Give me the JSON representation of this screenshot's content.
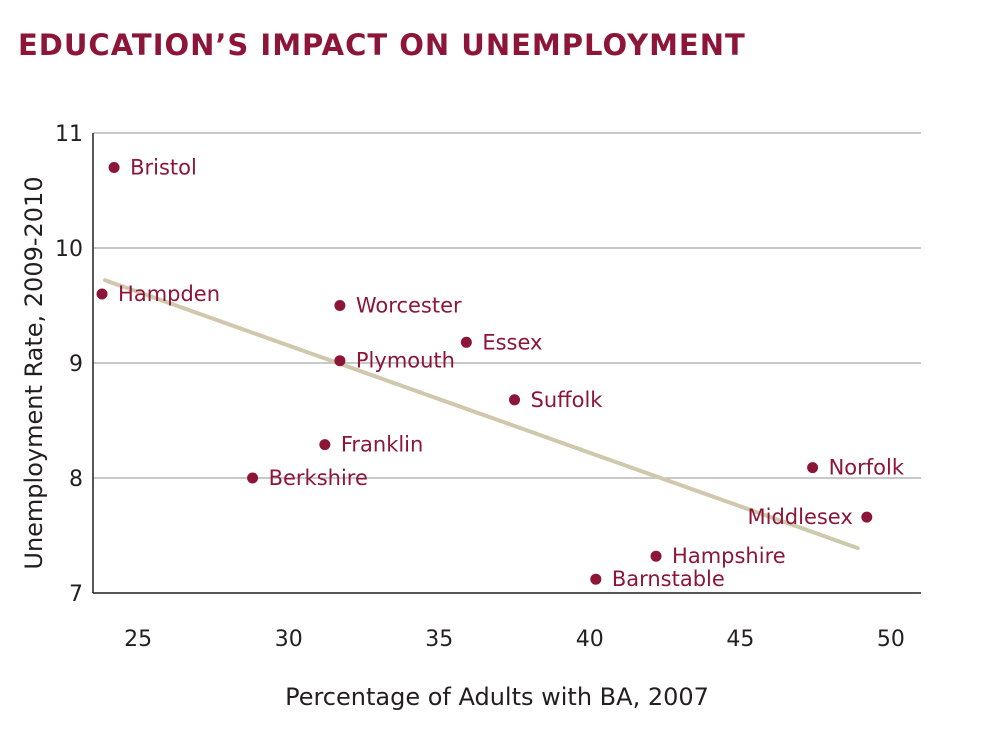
{
  "colors": {
    "title": "#8c1538",
    "point": "#8c1538",
    "label": "#8c1538",
    "trendline": "#cfc8ad",
    "grid": "#b7b7b7",
    "axis": "#231f20",
    "text": "#231f20"
  },
  "chart_data": {
    "type": "scatter",
    "title": "EDUCATION’S IMPACT ON UNEMPLOYMENT",
    "xlabel": "Percentage of Adults with BA, 2007",
    "ylabel": "Unemployment Rate, 2009-2010",
    "xlim": [
      23.5,
      51
    ],
    "ylim": [
      7,
      11
    ],
    "xticks": [
      25,
      30,
      35,
      40,
      45,
      50
    ],
    "yticks": [
      7,
      8,
      9,
      10,
      11
    ],
    "grid": "horizontal",
    "points": [
      {
        "label": "Bristol",
        "x": 24.2,
        "y": 10.7,
        "label_pos": "right"
      },
      {
        "label": "Hampden",
        "x": 23.8,
        "y": 9.6,
        "label_pos": "right"
      },
      {
        "label": "Worcester",
        "x": 31.7,
        "y": 9.5,
        "label_pos": "right"
      },
      {
        "label": "Essex",
        "x": 35.9,
        "y": 9.18,
        "label_pos": "right"
      },
      {
        "label": "Plymouth",
        "x": 31.7,
        "y": 9.02,
        "label_pos": "right"
      },
      {
        "label": "Suffolk",
        "x": 37.5,
        "y": 8.68,
        "label_pos": "right"
      },
      {
        "label": "Franklin",
        "x": 31.2,
        "y": 8.29,
        "label_pos": "right"
      },
      {
        "label": "Berkshire",
        "x": 28.8,
        "y": 8.0,
        "label_pos": "right"
      },
      {
        "label": "Norfolk",
        "x": 47.4,
        "y": 8.09,
        "label_pos": "right"
      },
      {
        "label": "Middlesex",
        "x": 49.2,
        "y": 7.66,
        "label_pos": "left"
      },
      {
        "label": "Hampshire",
        "x": 42.2,
        "y": 7.32,
        "label_pos": "right"
      },
      {
        "label": "Barnstable",
        "x": 40.2,
        "y": 7.12,
        "label_pos": "right"
      }
    ],
    "trendline": {
      "x": [
        23.9,
        48.9
      ],
      "y": [
        9.72,
        7.39
      ]
    }
  }
}
